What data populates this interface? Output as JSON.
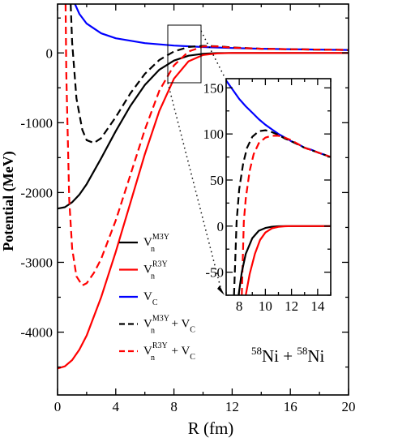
{
  "chart_data": [
    {
      "type": "line",
      "xlabel": "R (fm)",
      "ylabel": "Potential (MeV)",
      "xlim": [
        0,
        20
      ],
      "ylim": [
        -4900,
        700
      ],
      "xticks": [
        0,
        4,
        8,
        12,
        16,
        20
      ],
      "yticks": [
        0,
        -1000,
        -2000,
        -3000,
        -4000
      ],
      "grid": false,
      "legend_placement": "lower-left",
      "annotation": {
        "pre1": "58",
        "nuc1": "Ni + ",
        "pre2": "58",
        "nuc2": "Ni"
      },
      "series": [
        {
          "name": "V_n^M3Y",
          "legend_base": "V",
          "legend_sub": "n",
          "legend_sup": "M3Y",
          "legend_suffix": "",
          "color": "#000000",
          "dashed": false,
          "x": [
            0,
            0.5,
            1,
            1.5,
            2,
            3,
            4,
            5,
            6,
            7,
            8,
            9,
            10,
            11,
            12,
            14,
            16,
            20
          ],
          "y": [
            -2230,
            -2210,
            -2140,
            -2030,
            -1880,
            -1510,
            -1120,
            -760,
            -460,
            -240,
            -110,
            -40,
            -12,
            -3,
            -1,
            0,
            0,
            0
          ]
        },
        {
          "name": "V_n^R3Y",
          "legend_base": "V",
          "legend_sub": "n",
          "legend_sup": "R3Y",
          "legend_suffix": "",
          "color": "#ff0000",
          "dashed": false,
          "x": [
            0,
            0.5,
            1,
            1.5,
            2,
            3,
            4,
            5,
            6,
            7,
            8,
            9,
            10,
            11,
            12,
            14,
            16,
            20
          ],
          "y": [
            -4520,
            -4490,
            -4400,
            -4250,
            -4050,
            -3500,
            -2850,
            -2150,
            -1450,
            -830,
            -370,
            -120,
            -30,
            -6,
            -1,
            0,
            0,
            0
          ]
        },
        {
          "name": "V_C",
          "legend_base": "V",
          "legend_sub": "C",
          "legend_sup": "",
          "legend_suffix": "",
          "color": "#0000ff",
          "dashed": false,
          "x": [
            1.2,
            1.5,
            2,
            3,
            4,
            6,
            8,
            10,
            12,
            14,
            16,
            18,
            20
          ],
          "y": [
            700,
            560,
            420,
            280,
            210,
            140,
            105,
            84,
            70,
            60,
            53,
            47,
            42
          ]
        },
        {
          "name": "V_n^M3Y + V_C",
          "legend_base": "V",
          "legend_sub": "n",
          "legend_sup": "M3Y",
          "legend_suffix": "+ V",
          "legend_suffix_sub": "C",
          "color": "#000000",
          "dashed": true,
          "x": [
            0.9,
            1,
            1.3,
            1.7,
            2,
            2.5,
            3,
            4,
            5,
            6,
            7,
            8,
            9,
            10,
            11,
            12,
            14,
            16,
            20
          ],
          "y": [
            700,
            150,
            -650,
            -1100,
            -1250,
            -1290,
            -1220,
            -920,
            -580,
            -300,
            -100,
            20,
            85,
            100,
            95,
            78,
            60,
            53,
            42
          ]
        },
        {
          "name": "V_n^R3Y + V_C",
          "legend_base": "V",
          "legend_sub": "n",
          "legend_sup": "R3Y",
          "legend_suffix": "+ V",
          "legend_suffix_sub": "C",
          "color": "#ff0000",
          "dashed": true,
          "x": [
            0.55,
            0.6,
            0.8,
            1,
            1.3,
            1.7,
            2,
            2.5,
            3,
            4,
            5,
            6,
            7,
            8,
            9,
            10,
            11,
            12,
            14,
            16,
            20
          ],
          "y": [
            700,
            -300,
            -2100,
            -2800,
            -3200,
            -3330,
            -3300,
            -3150,
            -2950,
            -2400,
            -1750,
            -1100,
            -540,
            -180,
            20,
            92,
            93,
            75,
            60,
            53,
            42
          ]
        }
      ]
    },
    {
      "type": "line",
      "xlabel": "",
      "ylabel": "",
      "xlim": [
        7,
        15
      ],
      "ylim": [
        -75,
        160
      ],
      "xticks": [
        8,
        10,
        12,
        14
      ],
      "yticks": [
        150,
        100,
        50,
        0,
        -50
      ],
      "grid": false,
      "series": [
        {
          "name": "V_C",
          "color": "#0000ff",
          "dashed": false,
          "x": [
            7,
            7.5,
            8,
            8.5,
            9,
            9.5,
            10,
            10.5,
            11,
            11.5,
            12,
            12.5,
            13,
            13.5,
            14,
            14.5,
            15
          ],
          "y": [
            158,
            148,
            138,
            130,
            123,
            116,
            110,
            105,
            100,
            96,
            92,
            89,
            85,
            83,
            80,
            77.5,
            75
          ]
        },
        {
          "name": "V_n^M3Y + V_C",
          "color": "#000000",
          "dashed": true,
          "x": [
            7.6,
            7.8,
            8,
            8.3,
            8.6,
            9,
            9.5,
            10,
            10.5,
            11,
            11.5,
            12,
            13,
            14,
            15
          ],
          "y": [
            -75,
            5,
            40,
            68,
            85,
            97,
            103,
            104,
            102,
            99,
            95,
            92,
            85,
            80,
            75
          ]
        },
        {
          "name": "V_n^R3Y + V_C",
          "color": "#ff0000",
          "dashed": true,
          "x": [
            8.2,
            8.35,
            8.5,
            8.8,
            9.1,
            9.5,
            10,
            10.5,
            11,
            11.5,
            12,
            13,
            14,
            15
          ],
          "y": [
            -75,
            5,
            30,
            60,
            78,
            90,
            96,
            98,
            98,
            96,
            93,
            85,
            80,
            75
          ]
        },
        {
          "name": "V_n^M3Y",
          "color": "#000000",
          "dashed": false,
          "x": [
            7.95,
            8.2,
            8.5,
            9,
            9.5,
            10,
            10.5,
            11,
            11.5,
            12,
            13,
            15
          ],
          "y": [
            -75,
            -50,
            -30,
            -13,
            -5,
            -2,
            -0.7,
            -0.2,
            0,
            0,
            0,
            0
          ]
        },
        {
          "name": "V_n^R3Y",
          "color": "#ff0000",
          "dashed": false,
          "x": [
            8.5,
            8.8,
            9.2,
            9.6,
            10,
            10.5,
            11,
            11.5,
            12,
            13,
            15
          ],
          "y": [
            -75,
            -52,
            -30,
            -15,
            -7,
            -2.5,
            -0.8,
            -0.2,
            0,
            0,
            0
          ]
        }
      ]
    }
  ]
}
